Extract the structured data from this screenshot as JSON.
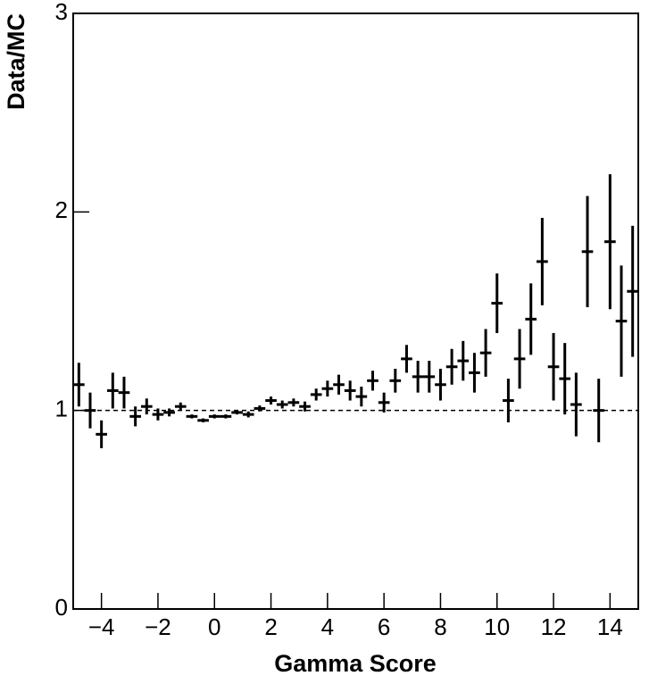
{
  "chart_data": {
    "type": "errorbar",
    "xlabel": "Gamma Score",
    "ylabel": "Data/MC",
    "x": [
      -4.8,
      -4.4,
      -4.0,
      -3.6,
      -3.2,
      -2.8,
      -2.4,
      -2.0,
      -1.6,
      -1.2,
      -0.8,
      -0.4,
      0.0,
      0.4,
      0.8,
      1.2,
      1.6,
      2.0,
      2.4,
      2.8,
      3.2,
      3.6,
      4.0,
      4.4,
      4.8,
      5.2,
      5.6,
      6.0,
      6.4,
      6.8,
      7.2,
      7.6,
      8.0,
      8.4,
      8.8,
      9.2,
      9.6,
      10.0,
      10.4,
      10.8,
      11.2,
      11.6,
      12.0,
      12.4,
      12.8,
      13.2,
      13.6,
      14.0,
      14.4,
      14.8
    ],
    "xerr": 0.2,
    "values": [
      1.13,
      1.0,
      0.88,
      1.1,
      1.09,
      0.97,
      1.02,
      0.98,
      0.99,
      1.02,
      0.97,
      0.95,
      0.97,
      0.97,
      0.99,
      0.98,
      1.01,
      1.05,
      1.03,
      1.04,
      1.02,
      1.08,
      1.11,
      1.13,
      1.1,
      1.07,
      1.15,
      1.04,
      1.15,
      1.26,
      1.17,
      1.17,
      1.13,
      1.22,
      1.25,
      1.19,
      1.29,
      1.54,
      1.05,
      1.26,
      1.46,
      1.75,
      1.22,
      1.16,
      1.03,
      1.8,
      1.0,
      1.85,
      1.45,
      1.6
    ],
    "errors": [
      0.11,
      0.09,
      0.07,
      0.09,
      0.08,
      0.05,
      0.04,
      0.03,
      0.02,
      0.02,
      0.01,
      0.01,
      0.01,
      0.01,
      0.01,
      0.015,
      0.015,
      0.02,
      0.02,
      0.02,
      0.025,
      0.03,
      0.04,
      0.05,
      0.05,
      0.05,
      0.05,
      0.05,
      0.06,
      0.07,
      0.08,
      0.08,
      0.08,
      0.09,
      0.1,
      0.1,
      0.12,
      0.15,
      0.11,
      0.15,
      0.18,
      0.22,
      0.17,
      0.18,
      0.16,
      0.28,
      0.16,
      0.34,
      0.28,
      0.33
    ],
    "color": "#000000",
    "reference_line": 1,
    "xlim": [
      -5,
      15
    ],
    "xticks": [
      {
        "value": -4,
        "label": "−4"
      },
      {
        "value": -2,
        "label": "−2"
      },
      0,
      2,
      4,
      6,
      8,
      10,
      12,
      14
    ],
    "ylim": [
      0,
      3
    ],
    "yticks": [
      0,
      1,
      2,
      3
    ]
  }
}
